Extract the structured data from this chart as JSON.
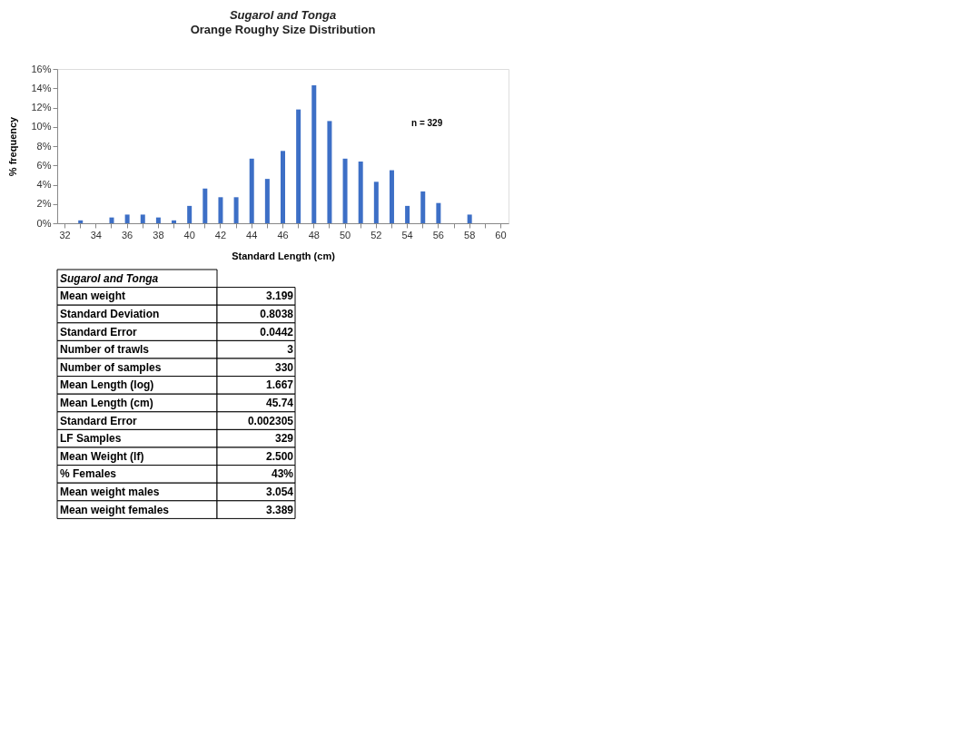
{
  "chart_data": [
    {
      "type": "bar",
      "title": "Sugarol and Tonga",
      "subtitle": "Orange Roughy Size Distribution",
      "xlabel": "Standard Length (cm)",
      "ylabel": "% frequency",
      "categories": [
        "32",
        null,
        "34",
        null,
        "36",
        null,
        "38",
        null,
        "40",
        null,
        "42",
        null,
        "44",
        null,
        "46",
        null,
        "48",
        null,
        "50",
        null,
        "52",
        null,
        "54",
        null,
        "56",
        null,
        "58",
        null,
        "60"
      ],
      "values": [
        0,
        0.3,
        0,
        0.6,
        0.9,
        0.9,
        0.6,
        0.3,
        1.8,
        3.6,
        2.7,
        2.7,
        6.7,
        4.6,
        7.5,
        11.8,
        14.3,
        10.6,
        6.7,
        6.4,
        4.3,
        5.5,
        1.8,
        3.3,
        2.1,
        0,
        0.9,
        0,
        0
      ],
      "color": "#3d6fc6",
      "ylim": [
        0,
        16
      ],
      "yticks": [
        {
          "value": 0,
          "label": "0%"
        },
        {
          "value": 2,
          "label": "2%"
        },
        {
          "value": 4,
          "label": "4%"
        },
        {
          "value": 6,
          "label": "6%"
        },
        {
          "value": 8,
          "label": "8%"
        },
        {
          "value": 10,
          "label": "10%"
        },
        {
          "value": 12,
          "label": "12%"
        },
        {
          "value": 14,
          "label": "14%"
        },
        {
          "value": 16,
          "label": "16%"
        }
      ],
      "grid": false,
      "annotations": [
        "n =     329"
      ]
    },
    {
      "type": "other",
      "title": "Sugarol and Tonga",
      "categories": [
        "Mean weight",
        "Standard Deviation",
        "Standard Error",
        "Number of trawls",
        "Number of samples",
        "Mean Length (log)",
        "Mean Length (cm)",
        "Standard Error",
        "LF Samples",
        "Mean Weight (lf)",
        "% Females",
        "Mean weight males",
        "Mean weight females"
      ],
      "value_labels": [
        "3.199",
        "0.8038",
        "0.0442",
        "3",
        "330",
        "1.667",
        "45.74",
        "0.002305",
        "329",
        "2.500",
        "43%",
        "3.054",
        "3.389"
      ]
    }
  ]
}
